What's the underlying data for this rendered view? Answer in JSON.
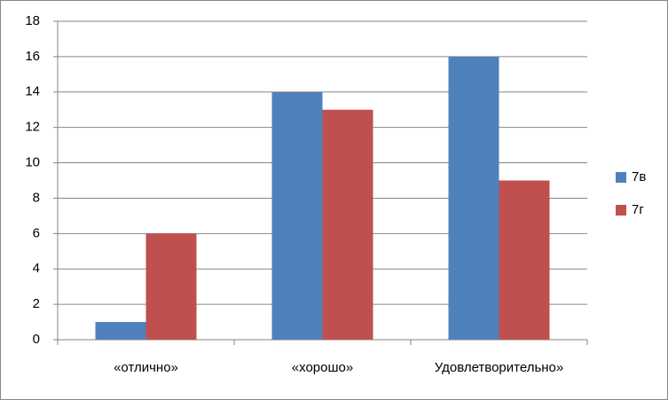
{
  "chart_data": {
    "type": "bar",
    "categories": [
      "«отлично»",
      "«хорошо»",
      "Удовлетворительно»"
    ],
    "series": [
      {
        "name": "7в",
        "color": "#4f81bd",
        "values": [
          1,
          14,
          16
        ]
      },
      {
        "name": "7г",
        "color": "#c0504d",
        "values": [
          6,
          13,
          9
        ]
      }
    ],
    "ylim": [
      0,
      18
    ],
    "yticks": [
      0,
      2,
      4,
      6,
      8,
      10,
      12,
      14,
      16,
      18
    ],
    "grid": true,
    "legend": "right"
  }
}
